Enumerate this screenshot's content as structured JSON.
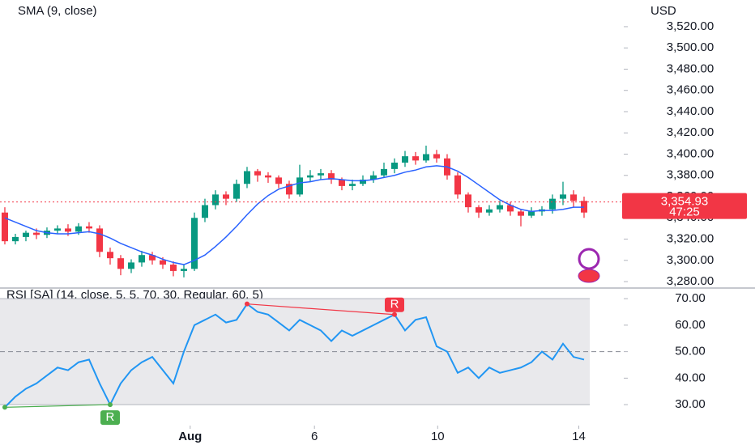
{
  "chart_data": [
    {
      "type": "candlestick",
      "y_label": "USD",
      "x": [
        0,
        1,
        2,
        3,
        4,
        5,
        6,
        7,
        8,
        9,
        10,
        11,
        12,
        13,
        14,
        15,
        16,
        17,
        18,
        19,
        20,
        21,
        22,
        23,
        24,
        25,
        26,
        27,
        28,
        29,
        30,
        31,
        32,
        33,
        34,
        35,
        36,
        37,
        38,
        39,
        40,
        41,
        42,
        43,
        44,
        45,
        46,
        47,
        48,
        49,
        50,
        51,
        52,
        53,
        54,
        55
      ],
      "open": [
        3345,
        3318,
        3322,
        3326,
        3324,
        3328,
        3330,
        3327,
        3332,
        3330,
        3308,
        3302,
        3292,
        3298,
        3305,
        3300,
        3296,
        3290,
        3292,
        3340,
        3352,
        3362,
        3358,
        3372,
        3384,
        3380,
        3378,
        3372,
        3362,
        3378,
        3380,
        3382,
        3376,
        3370,
        3372,
        3376,
        3380,
        3386,
        3392,
        3398,
        3394,
        3400,
        3396,
        3380,
        3362,
        3350,
        3345,
        3348,
        3352,
        3346,
        3342,
        3346,
        3348,
        3358,
        3362,
        3356
      ],
      "high": [
        3350,
        3325,
        3328,
        3330,
        3331,
        3333,
        3334,
        3335,
        3336,
        3333,
        3312,
        3305,
        3301,
        3309,
        3308,
        3303,
        3299,
        3296,
        3345,
        3358,
        3366,
        3365,
        3376,
        3388,
        3386,
        3383,
        3380,
        3375,
        3390,
        3385,
        3386,
        3385,
        3378,
        3376,
        3380,
        3384,
        3392,
        3396,
        3403,
        3402,
        3408,
        3404,
        3400,
        3383,
        3364,
        3352,
        3352,
        3356,
        3355,
        3348,
        3350,
        3351,
        3362,
        3374,
        3366,
        3360
      ],
      "low": [
        3315,
        3315,
        3318,
        3320,
        3321,
        3325,
        3323,
        3324,
        3326,
        3303,
        3296,
        3286,
        3288,
        3294,
        3296,
        3292,
        3285,
        3284,
        3290,
        3336,
        3348,
        3352,
        3355,
        3368,
        3374,
        3373,
        3368,
        3358,
        3360,
        3374,
        3376,
        3372,
        3366,
        3366,
        3370,
        3373,
        3378,
        3382,
        3388,
        3390,
        3392,
        3392,
        3376,
        3358,
        3345,
        3340,
        3342,
        3345,
        3342,
        3332,
        3340,
        3342,
        3344,
        3352,
        3350,
        3340
      ],
      "close": [
        3318,
        3322,
        3326,
        3324,
        3328,
        3330,
        3327,
        3332,
        3330,
        3308,
        3302,
        3292,
        3298,
        3305,
        3300,
        3296,
        3290,
        3292,
        3340,
        3352,
        3362,
        3358,
        3372,
        3384,
        3380,
        3378,
        3372,
        3362,
        3378,
        3380,
        3382,
        3376,
        3370,
        3372,
        3376,
        3380,
        3386,
        3392,
        3398,
        3394,
        3400,
        3396,
        3380,
        3362,
        3350,
        3345,
        3348,
        3352,
        3346,
        3342,
        3346,
        3348,
        3358,
        3362,
        3356,
        3345
      ],
      "up_color": "#089981",
      "down_color": "#f23645",
      "series": [
        {
          "name": "SMA (9, close)",
          "color": "#2962ff",
          "values": [
            3340,
            3336,
            3332,
            3328,
            3326,
            3325,
            3325,
            3326,
            3327,
            3325,
            3321,
            3316,
            3312,
            3308,
            3305,
            3301,
            3298,
            3296,
            3300,
            3305,
            3313,
            3322,
            3332,
            3343,
            3353,
            3361,
            3367,
            3370,
            3373,
            3374,
            3376,
            3377,
            3376,
            3375,
            3375,
            3376,
            3378,
            3380,
            3383,
            3385,
            3388,
            3389,
            3388,
            3384,
            3378,
            3371,
            3364,
            3357,
            3352,
            3348,
            3346,
            3347,
            3347,
            3348,
            3350,
            3350
          ]
        }
      ],
      "last_price": {
        "value": 3354.93,
        "label": "3,354.93",
        "color": "#f23645"
      },
      "countdown": "47:25",
      "xlim": [
        -0.46,
        58.77
      ],
      "ylim": [
        3274.7,
        3545.1
      ],
      "yticks": [
        {
          "value": 3280,
          "label": "3,280.00"
        },
        {
          "value": 3300,
          "label": "3,300.00"
        },
        {
          "value": 3320,
          "label": "3,320.00"
        },
        {
          "value": 3340,
          "label": "3,340.00"
        },
        {
          "value": 3360,
          "label": "3,360.00"
        },
        {
          "value": 3380,
          "label": "3,380.00"
        },
        {
          "value": 3400,
          "label": "3,400.00"
        },
        {
          "value": 3420,
          "label": "3,420.00"
        },
        {
          "value": 3440,
          "label": "3,440.00"
        },
        {
          "value": 3460,
          "label": "3,460.00"
        },
        {
          "value": 3480,
          "label": "3,480.00"
        },
        {
          "value": 3500,
          "label": "3,500.00"
        },
        {
          "value": 3520,
          "label": "3,520.00"
        }
      ]
    },
    {
      "type": "line",
      "x": [
        0,
        1,
        2,
        3,
        4,
        5,
        6,
        7,
        8,
        9,
        10,
        11,
        12,
        13,
        14,
        15,
        16,
        17,
        18,
        19,
        20,
        21,
        22,
        23,
        24,
        25,
        26,
        27,
        28,
        29,
        30,
        31,
        32,
        33,
        34,
        35,
        36,
        37,
        38,
        39,
        40,
        41,
        42,
        43,
        44,
        45,
        46,
        47,
        48,
        49,
        50,
        51,
        52,
        53,
        54,
        55
      ],
      "series": [
        {
          "name": "RSI [SA] (14, close, 5, 5, 70, 30, Regular, 60, 5)",
          "color": "#2196f3",
          "values": [
            29,
            33,
            36,
            38,
            41,
            44,
            43,
            46,
            47,
            38,
            30,
            38,
            43,
            46,
            48,
            43,
            38,
            50,
            60,
            62,
            64,
            61,
            62,
            68,
            65,
            64,
            61,
            58,
            62,
            60,
            58,
            54,
            58,
            56,
            58,
            60,
            62,
            64,
            58,
            62,
            63,
            52,
            50,
            42,
            44,
            40,
            44,
            42,
            43,
            44,
            46,
            50,
            47,
            53,
            48,
            47
          ]
        }
      ],
      "band": [
        30,
        70
      ],
      "band_color": "#e9e9ec",
      "midline": 50,
      "divergences": [
        {
          "label": "R",
          "color": "#f23645",
          "x": [
            23,
            37
          ],
          "values": [
            68,
            64
          ],
          "side": "top"
        },
        {
          "label": "R",
          "color": "#4caf50",
          "x": [
            0,
            10
          ],
          "values": [
            29,
            30
          ],
          "side": "bottom"
        }
      ],
      "xlim": [
        -0.46,
        58.77
      ],
      "ylim": [
        22.4,
        73.4
      ],
      "yticks": [
        {
          "value": 30,
          "label": "30.00"
        },
        {
          "value": 40,
          "label": "40.00"
        },
        {
          "value": 50,
          "label": "50.00"
        },
        {
          "value": 60,
          "label": "60.00"
        },
        {
          "value": 70,
          "label": "70.00"
        }
      ],
      "xticks": [
        {
          "value": 17.6,
          "label": "Aug"
        },
        {
          "value": 29.4,
          "label": "6"
        },
        {
          "value": 41.1,
          "label": "10"
        },
        {
          "value": 54.5,
          "label": "14"
        }
      ]
    }
  ]
}
